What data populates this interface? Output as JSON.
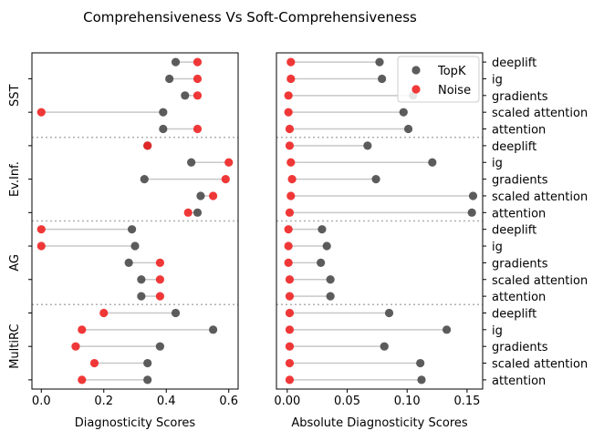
{
  "chart_data": {
    "type": "scatter",
    "title": "Comprehensiveness Vs Soft-Comprehensiveness",
    "groups": [
      "SST",
      "Ev.Inf.",
      "AG",
      "MultiRC"
    ],
    "methods": [
      "deeplift",
      "ig",
      "gradients",
      "scaled attention",
      "attention"
    ],
    "legend": {
      "position": "upper-right",
      "labels": [
        "TopK",
        "Noise"
      ]
    },
    "colors": {
      "topk": "#4a4a4a",
      "noise": "#ee2222",
      "stem": "#c8c8c8",
      "separator": "#b0b0b0"
    },
    "panels": [
      {
        "xlabel": "Diagnosticity Scores",
        "xlim": [
          -0.03,
          0.63
        ],
        "xticks": [
          {
            "v": 0.0,
            "label": "0.0"
          },
          {
            "v": 0.2,
            "label": "0.2"
          },
          {
            "v": 0.4,
            "label": "0.4"
          },
          {
            "v": 0.6,
            "label": "0.6"
          }
        ],
        "series": [
          {
            "name": "TopK",
            "values": [
              [
                0.43,
                0.41,
                0.46,
                0.39,
                0.39
              ],
              [
                0.34,
                0.48,
                0.33,
                0.51,
                0.5
              ],
              [
                0.29,
                0.3,
                0.28,
                0.32,
                0.32
              ],
              [
                0.43,
                0.55,
                0.38,
                0.34,
                0.34
              ]
            ]
          },
          {
            "name": "Noise",
            "values": [
              [
                0.5,
                0.5,
                0.5,
                0.0,
                0.5
              ],
              [
                0.34,
                0.6,
                0.59,
                0.55,
                0.47
              ],
              [
                0.0,
                0.0,
                0.38,
                0.38,
                0.38
              ],
              [
                0.2,
                0.13,
                0.11,
                0.17,
                0.13
              ]
            ]
          }
        ]
      },
      {
        "xlabel": "Absolute Diagnosticity Scores",
        "xlim": [
          -0.009,
          0.163
        ],
        "xticks": [
          {
            "v": 0.0,
            "label": "0.00"
          },
          {
            "v": 0.05,
            "label": "0.05"
          },
          {
            "v": 0.1,
            "label": "0.10"
          },
          {
            "v": 0.15,
            "label": "0.15"
          }
        ],
        "series": [
          {
            "name": "TopK",
            "values": [
              [
                0.077,
                0.079,
                0.105,
                0.097,
                0.101
              ],
              [
                0.067,
                0.121,
                0.074,
                0.155,
                0.154
              ],
              [
                0.029,
                0.033,
                0.028,
                0.036,
                0.036
              ],
              [
                0.085,
                0.133,
                0.081,
                0.111,
                0.112
              ]
            ]
          },
          {
            "name": "Noise",
            "values": [
              [
                0.003,
                0.003,
                0.001,
                0.001,
                0.002
              ],
              [
                0.002,
                0.003,
                0.004,
                0.003,
                0.002
              ],
              [
                0.001,
                0.001,
                0.001,
                0.002,
                0.002
              ],
              [
                0.002,
                0.002,
                0.002,
                0.002,
                0.002
              ]
            ]
          }
        ]
      }
    ]
  }
}
